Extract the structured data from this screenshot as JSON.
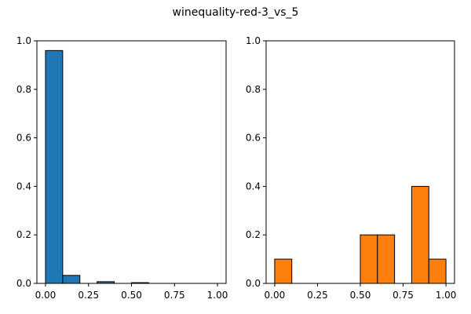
{
  "figure": {
    "title": "winequality-red-3_vs_5"
  },
  "chart_data": [
    {
      "type": "bar",
      "color": "#1f77b4",
      "bin_edges": [
        0.0,
        0.1,
        0.2,
        0.3,
        0.4,
        0.5,
        0.6,
        0.7,
        0.8,
        0.9,
        1.0
      ],
      "values": [
        0.96,
        0.033,
        0.0,
        0.007,
        0.0,
        0.003,
        0.0,
        0.0,
        0.0,
        0.0
      ],
      "xlim": [
        -0.05,
        1.05
      ],
      "ylim": [
        0,
        1.0
      ],
      "xticks": [
        "0.00",
        "0.25",
        "0.50",
        "0.75",
        "1.00"
      ],
      "yticks": [
        "0.0",
        "0.2",
        "0.4",
        "0.6",
        "0.8",
        "1.0"
      ],
      "grid": false
    },
    {
      "type": "bar",
      "color": "#ff7f0e",
      "bin_edges": [
        0.0,
        0.1,
        0.2,
        0.3,
        0.4,
        0.5,
        0.6,
        0.7,
        0.8,
        0.9,
        1.0
      ],
      "values": [
        0.1,
        0.0,
        0.0,
        0.0,
        0.0,
        0.2,
        0.2,
        0.0,
        0.4,
        0.1
      ],
      "xlim": [
        -0.05,
        1.05
      ],
      "ylim": [
        0,
        1.0
      ],
      "xticks": [
        "0.00",
        "0.25",
        "0.50",
        "0.75",
        "1.00"
      ],
      "yticks": [
        "0.0",
        "0.2",
        "0.4",
        "0.6",
        "0.8",
        "1.0"
      ],
      "grid": false
    }
  ]
}
